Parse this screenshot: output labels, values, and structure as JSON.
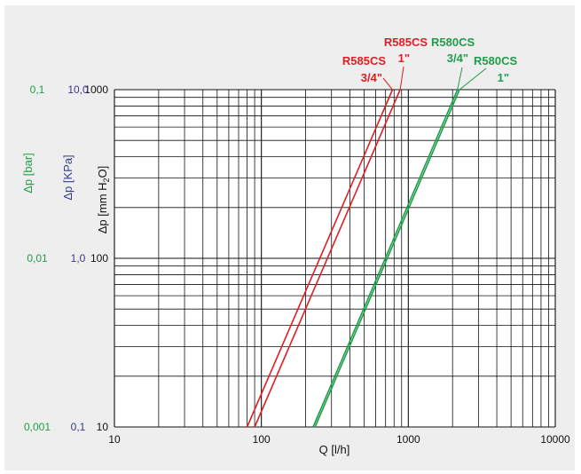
{
  "chart_data": {
    "type": "line",
    "x_scale": "log",
    "y_scale": "log",
    "xlim": [
      10,
      10000
    ],
    "ylim": [
      10,
      1000
    ],
    "grid": true,
    "xlabel": "Q [l/h]",
    "ylabel": "Δp [mm H2O]",
    "ylabel_parts": {
      "main": "Δp [mm H",
      "sub": "2",
      "end": "O]"
    },
    "ylabel_kpa": "Δp [KPa]",
    "ylabel_bar": "Δp [bar]",
    "x_ticks": [
      "10",
      "100",
      "1000",
      "10000"
    ],
    "y_ticks": [
      "10",
      "100",
      "1000"
    ],
    "kpa_ticks": [
      "0,1",
      "1,0",
      "10,0"
    ],
    "bar_ticks": [
      "0,001",
      "0,01",
      "0,1"
    ],
    "colors": {
      "background": "#eeeeee",
      "plot": "#ffffff",
      "red": "#e01e22",
      "green": "#1f9d49",
      "kpa": "#3a3a8c",
      "bar": "#1f9d49",
      "grid": "#111111"
    },
    "series": [
      {
        "name": "R585CS 3/4\"",
        "color": "#e01e22",
        "points": [
          [
            80,
            10
          ],
          [
            780,
            1000
          ]
        ]
      },
      {
        "name": "R585CS 1\"",
        "color": "#e01e22",
        "points": [
          [
            90,
            10
          ],
          [
            880,
            1000
          ]
        ]
      },
      {
        "name": "R580CS 3/4\"",
        "color": "#1f9d49",
        "points": [
          [
            225,
            10
          ],
          [
            2160,
            1000
          ]
        ]
      },
      {
        "name": "R580CS 1\"",
        "color": "#1f9d49",
        "points": [
          [
            232,
            10
          ],
          [
            2230,
            1000
          ]
        ]
      }
    ],
    "annotations": [
      {
        "text": "R585CS",
        "color": "#e01e22"
      },
      {
        "text": "3/4\"",
        "color": "#e01e22"
      },
      {
        "text": "R585CS",
        "color": "#e01e22"
      },
      {
        "text": "1\"",
        "color": "#e01e22"
      },
      {
        "text": "R580CS",
        "color": "#1f9d49"
      },
      {
        "text": "3/4\"",
        "color": "#1f9d49"
      },
      {
        "text": "R580CS",
        "color": "#1f9d49"
      },
      {
        "text": "1\"",
        "color": "#1f9d49"
      }
    ]
  }
}
